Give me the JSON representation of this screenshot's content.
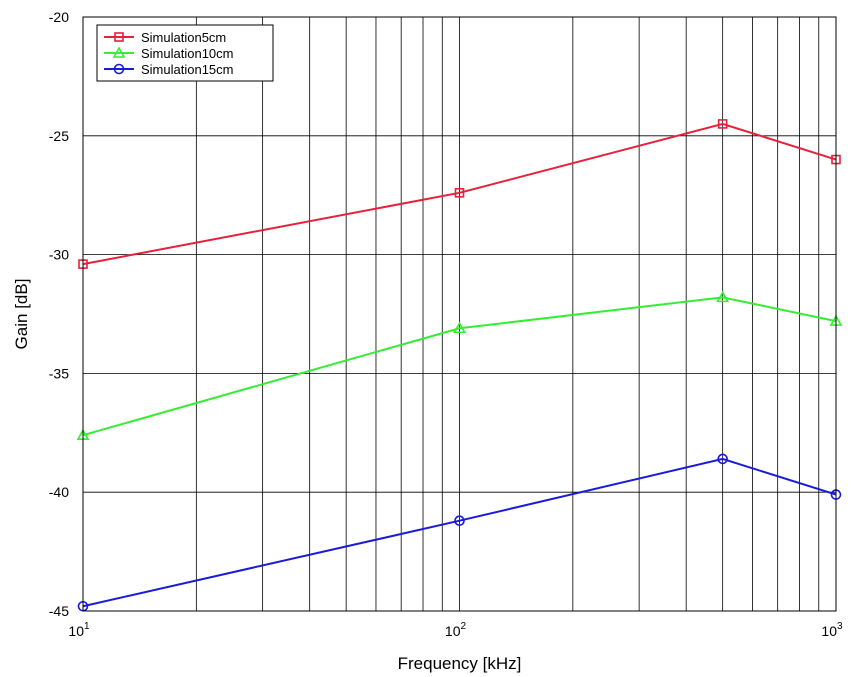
{
  "chart_data": {
    "type": "line",
    "title": "",
    "xlabel": "Frequency [kHz]",
    "ylabel": "Gain [dB]",
    "x_scale": "log",
    "xlim": [
      10,
      1000
    ],
    "ylim": [
      -45,
      -20
    ],
    "yticks": [
      -45,
      -40,
      -35,
      -30,
      -25,
      -20
    ],
    "xticks": [
      {
        "value": 10,
        "base": "10",
        "exp": "1"
      },
      {
        "value": 100,
        "base": "10",
        "exp": "2"
      },
      {
        "value": 1000,
        "base": "10",
        "exp": "3"
      }
    ],
    "grid": true,
    "legend_position": "top-left",
    "x": [
      10,
      100,
      500,
      1000
    ],
    "series": [
      {
        "name": "Simulation5cm",
        "color": "#e8203c",
        "marker": "square",
        "values": [
          -30.4,
          -27.4,
          -24.5,
          -26.0
        ]
      },
      {
        "name": "Simulation10cm",
        "color": "#33ee33",
        "marker": "triangle",
        "values": [
          -37.6,
          -33.1,
          -31.8,
          -32.8
        ]
      },
      {
        "name": "Simulation15cm",
        "color": "#1a1adc",
        "marker": "circle",
        "values": [
          -44.8,
          -41.2,
          -38.6,
          -40.1
        ]
      }
    ]
  }
}
